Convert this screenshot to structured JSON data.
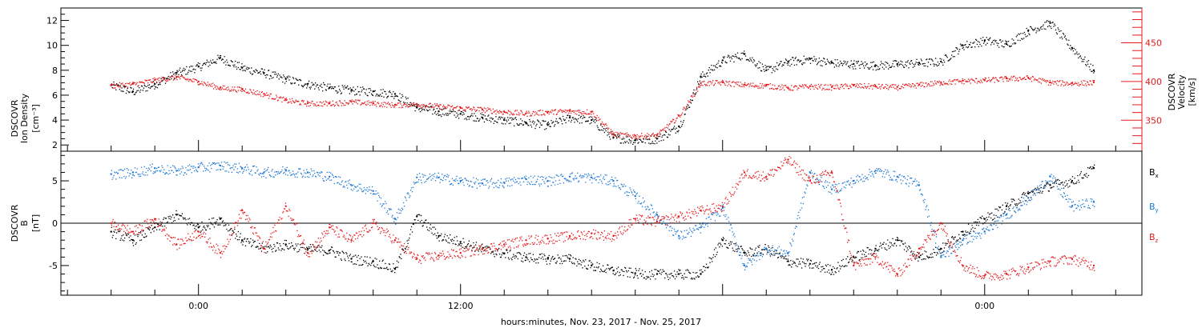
{
  "chart_data": [
    {
      "type": "scatter",
      "panel": "top",
      "ylabel_left": [
        "DSCOVR",
        "Ion Density",
        "[cm⁻³]"
      ],
      "ylabel_right": [
        "DSCOVR",
        "Velocity",
        "[km/s]"
      ],
      "ylim_left": [
        1.5,
        13.0
      ],
      "ylim_right": [
        310,
        495
      ],
      "yticks_left": [
        "2",
        "4",
        "6",
        "8",
        "10",
        "12"
      ],
      "yticks_right": [
        "350",
        "400",
        "450"
      ],
      "right_axis_color": "#e41a1c",
      "series": [
        {
          "axis": "left",
          "color": "#000000",
          "x": [
            -4,
            -3,
            -2,
            -1,
            0,
            1,
            2,
            3,
            4,
            5,
            6,
            7,
            8,
            9,
            10,
            11,
            12,
            13,
            14,
            15,
            16,
            17,
            18,
            19,
            20,
            21,
            22,
            23,
            24,
            25,
            26,
            27,
            28,
            29,
            30,
            31,
            32,
            33,
            34,
            35,
            36,
            37,
            38,
            39,
            40,
            41
          ],
          "y": [
            6.8,
            6.3,
            6.9,
            7.8,
            8.3,
            9.0,
            8.2,
            7.8,
            7.3,
            6.9,
            6.6,
            6.4,
            6.3,
            6.1,
            5.0,
            4.7,
            4.5,
            4.2,
            4.0,
            3.8,
            3.6,
            4.2,
            4.0,
            2.6,
            2.4,
            2.5,
            3.5,
            7.5,
            8.8,
            9.3,
            8.0,
            8.7,
            8.9,
            8.6,
            8.5,
            8.4,
            8.5,
            8.6,
            8.7,
            10.0,
            10.4,
            10.1,
            11.2,
            11.8,
            9.8,
            8.0
          ]
        },
        {
          "axis": "right",
          "color": "#e41a1c",
          "x": [
            -4,
            -3,
            -2,
            -1,
            0,
            1,
            2,
            3,
            4,
            5,
            6,
            7,
            8,
            9,
            10,
            11,
            12,
            13,
            14,
            15,
            16,
            17,
            18,
            19,
            20,
            21,
            22,
            23,
            24,
            25,
            26,
            27,
            28,
            29,
            30,
            31,
            32,
            33,
            34,
            35,
            36,
            37,
            38,
            39,
            40,
            41
          ],
          "y": [
            395,
            397,
            402,
            406,
            400,
            392,
            390,
            384,
            376,
            372,
            372,
            374,
            372,
            370,
            371,
            368,
            366,
            364,
            361,
            359,
            361,
            362,
            361,
            332,
            330,
            331,
            356,
            398,
            399,
            396,
            395,
            392,
            394,
            393,
            395,
            394,
            393,
            396,
            399,
            401,
            402,
            404,
            405,
            399,
            398,
            399
          ]
        }
      ]
    },
    {
      "type": "scatter",
      "panel": "bottom",
      "ylabel_left": [
        "DSCOVR",
        "B",
        "[nT]"
      ],
      "ylim": [
        -8.5,
        8.5
      ],
      "yticks": [
        "-5",
        "0",
        "5"
      ],
      "zero_line": true,
      "legend": [
        "Bₓ",
        "Bᵧ",
        "B_z"
      ],
      "legend_labels": [
        "B",
        "B",
        "B"
      ],
      "legend_subs": [
        "x",
        "y",
        "z"
      ],
      "series": [
        {
          "name": "Bx",
          "color": "#000000",
          "x": [
            -4,
            -3,
            -2,
            -1,
            0,
            1,
            2,
            3,
            4,
            5,
            6,
            7,
            8,
            9,
            10,
            11,
            12,
            13,
            14,
            15,
            16,
            17,
            18,
            19,
            20,
            21,
            22,
            23,
            24,
            25,
            26,
            27,
            28,
            29,
            30,
            31,
            32,
            33,
            34,
            35,
            36,
            37,
            38,
            39,
            40,
            41
          ],
          "y": [
            -1.0,
            -2.0,
            -0.5,
            1.0,
            -0.5,
            0.5,
            -2.0,
            -3.0,
            -2.5,
            -3.0,
            -3.2,
            -4.2,
            -4.5,
            -5.4,
            0.8,
            -1.5,
            -2.2,
            -3.0,
            -3.6,
            -4.0,
            -4.2,
            -4.2,
            -5.0,
            -5.6,
            -5.9,
            -6.0,
            -6.0,
            -6.0,
            -2.0,
            -3.5,
            -3.0,
            -4.5,
            -4.8,
            -5.5,
            -4.0,
            -3.0,
            -2.0,
            -4.0,
            -3.0,
            -1.0,
            0.5,
            2.0,
            3.5,
            4.5,
            5.0,
            6.5
          ]
        },
        {
          "name": "By",
          "color": "#1f78d4",
          "x": [
            -4,
            -3,
            -2,
            -1,
            0,
            1,
            2,
            3,
            4,
            5,
            6,
            7,
            8,
            9,
            10,
            11,
            12,
            13,
            14,
            15,
            16,
            17,
            18,
            19,
            20,
            21,
            22,
            23,
            24,
            25,
            26,
            27,
            28,
            29,
            30,
            31,
            32,
            33,
            34,
            35,
            36,
            37,
            38,
            39,
            40,
            41
          ],
          "y": [
            5.8,
            6.0,
            6.5,
            6.2,
            6.6,
            6.8,
            6.5,
            6.0,
            6.2,
            6.0,
            5.5,
            4.5,
            3.8,
            0.5,
            5.4,
            5.4,
            5.0,
            4.7,
            4.8,
            5.2,
            5.0,
            5.5,
            5.4,
            5.0,
            3.2,
            1.0,
            -1.5,
            -0.5,
            1.8,
            -5.0,
            -3.0,
            -3.5,
            6.0,
            4.0,
            5.0,
            6.2,
            5.5,
            4.5,
            -4.0,
            -2.0,
            -1.0,
            1.0,
            3.0,
            5.5,
            2.0,
            2.5
          ]
        },
        {
          "name": "Bz",
          "color": "#e41a1c",
          "x": [
            -4,
            -3,
            -2,
            -1,
            0,
            1,
            2,
            3,
            4,
            5,
            6,
            7,
            8,
            9,
            10,
            11,
            12,
            13,
            14,
            15,
            16,
            17,
            18,
            19,
            20,
            21,
            22,
            23,
            24,
            25,
            26,
            27,
            28,
            29,
            30,
            31,
            32,
            33,
            34,
            35,
            36,
            37,
            38,
            39,
            40,
            41
          ],
          "y": [
            0.0,
            -1.0,
            0.5,
            -2.5,
            -1.0,
            -3.5,
            1.5,
            -3.0,
            2.0,
            -3.5,
            -0.5,
            -2.0,
            0.0,
            -2.0,
            -4.2,
            -3.8,
            -3.5,
            -3.0,
            -2.5,
            -2.0,
            -1.8,
            -1.5,
            -1.2,
            -1.5,
            0.5,
            0.2,
            0.8,
            1.5,
            2.0,
            6.0,
            5.5,
            7.5,
            5.0,
            6.0,
            -5.0,
            -4.0,
            -6.0,
            -3.0,
            0.0,
            -5.0,
            -6.2,
            -6.0,
            -5.2,
            -4.5,
            -4.2,
            -5.0
          ]
        }
      ]
    },
    {
      "type": "axis",
      "xlabel": "hours:minutes, Nov. 23, 2017 - Nov. 25, 2017",
      "xlim": [
        -6.3,
        43.2
      ],
      "xticks": [
        0,
        12,
        36
      ],
      "xtick_labels": [
        "0:00",
        "12:00",
        "0:00"
      ]
    }
  ]
}
